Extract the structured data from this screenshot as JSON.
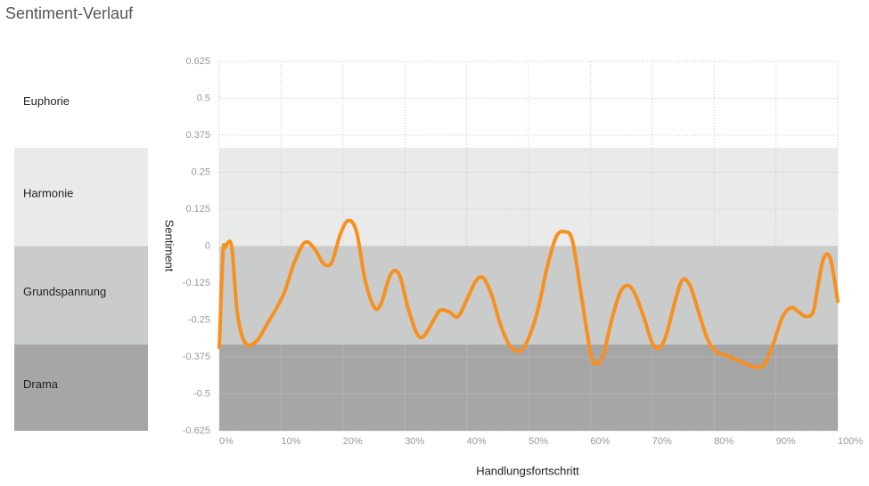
{
  "chart_data": {
    "type": "line",
    "title": "Sentiment-Verlauf",
    "x_label": "Handlungsfortschritt",
    "y_label": "Sentiment",
    "bands": [
      {
        "name": "Euphorie",
        "from": 0.333,
        "to": 0.625,
        "color": "#ffffff"
      },
      {
        "name": "Harmonie",
        "from": 0,
        "to": 0.333,
        "color": "#e9eaea"
      },
      {
        "name": "Grundspannung",
        "from": -0.333,
        "to": 0,
        "color": "#cacbcb"
      },
      {
        "name": "Drama",
        "from": -0.625,
        "to": -0.333,
        "color": "#a6a6a6"
      }
    ],
    "xlim": [
      0,
      100
    ],
    "ylim": [
      -0.625,
      0.625
    ],
    "xticks": [
      {
        "value": 0,
        "label": "0%"
      },
      {
        "value": 10,
        "label": "10%"
      },
      {
        "value": 20,
        "label": "20%"
      },
      {
        "value": 30,
        "label": "30%"
      },
      {
        "value": 40,
        "label": "40%"
      },
      {
        "value": 50,
        "label": "50%"
      },
      {
        "value": 60,
        "label": "60%"
      },
      {
        "value": 70,
        "label": "70%"
      },
      {
        "value": 80,
        "label": "80%"
      },
      {
        "value": 90,
        "label": "90%"
      },
      {
        "value": 100,
        "label": "100%"
      }
    ],
    "yticks": [
      0.625,
      0.5,
      0.375,
      0.25,
      0.125,
      0,
      -0.125,
      -0.25,
      -0.375,
      -0.5,
      -0.625
    ],
    "grid": true,
    "series": [
      {
        "name": "Sentiment",
        "color": "#f7901e",
        "x": [
          0,
          0.6,
          1,
          2,
          2.9,
          4.2,
          6,
          7.8,
          10.4,
          12.1,
          13.8,
          15.3,
          16.9,
          18.2,
          19.6,
          20.9,
          22.2,
          23.6,
          25.1,
          26.2,
          27.7,
          29.1,
          30.5,
          32,
          33.1,
          34.6,
          35.7,
          37.2,
          38.6,
          40.1,
          41.5,
          42.7,
          44.1,
          45.5,
          47,
          48.7,
          50.1,
          51.6,
          53,
          54.5,
          55.9,
          57.1,
          58.5,
          60,
          60.8,
          62,
          63.4,
          64.8,
          66,
          67.1,
          68.6,
          70,
          71.2,
          72.3,
          73.8,
          74.9,
          76.1,
          77.5,
          78.9,
          80.4,
          82.4,
          84.7,
          86.7,
          88.2,
          89.6,
          91.1,
          92.5,
          93.7,
          94.8,
          96,
          96.8,
          97.7,
          98.8,
          100
        ],
        "values": [
          -0.343,
          -0.027,
          -0.003,
          0.0,
          -0.223,
          -0.328,
          -0.322,
          -0.262,
          -0.163,
          -0.057,
          0.012,
          -0.006,
          -0.06,
          -0.054,
          0.042,
          0.087,
          0.048,
          -0.117,
          -0.208,
          -0.193,
          -0.096,
          -0.096,
          -0.208,
          -0.298,
          -0.304,
          -0.253,
          -0.217,
          -0.223,
          -0.238,
          -0.178,
          -0.117,
          -0.108,
          -0.169,
          -0.268,
          -0.337,
          -0.355,
          -0.307,
          -0.208,
          -0.072,
          0.033,
          0.048,
          0.018,
          -0.163,
          -0.358,
          -0.398,
          -0.373,
          -0.253,
          -0.157,
          -0.133,
          -0.157,
          -0.238,
          -0.328,
          -0.343,
          -0.298,
          -0.178,
          -0.114,
          -0.133,
          -0.223,
          -0.313,
          -0.358,
          -0.373,
          -0.395,
          -0.41,
          -0.398,
          -0.328,
          -0.238,
          -0.208,
          -0.223,
          -0.238,
          -0.223,
          -0.133,
          -0.042,
          -0.042,
          -0.187
        ]
      }
    ]
  }
}
